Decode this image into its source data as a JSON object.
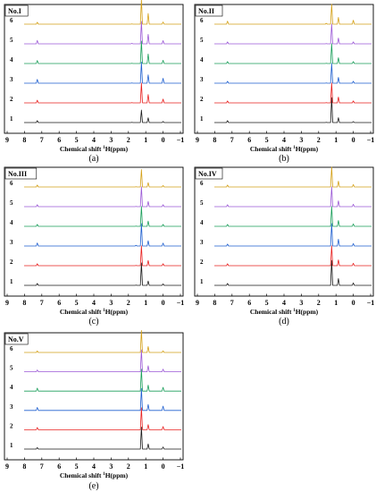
{
  "figure": {
    "xlabel_prefix": "Chemical shift ",
    "xlabel_sup": "1",
    "xlabel_suffix": "H(ppm)",
    "spectrum_labels": [
      "1",
      "2",
      "3",
      "4",
      "5",
      "6"
    ],
    "spectrum_colors": [
      "#1a1a1a",
      "#e8201f",
      "#1f5fcf",
      "#1a9e5a",
      "#9b59d6",
      "#d4a017"
    ]
  },
  "chart_data": [
    {
      "type": "line",
      "panel_title": "No.I",
      "caption": "(a)",
      "x": [
        -1,
        0,
        1,
        2,
        3,
        4,
        5,
        6,
        7,
        8,
        9
      ],
      "xticks": [
        "9",
        "8",
        "7",
        "6",
        "5",
        "4",
        "3",
        "2",
        "1",
        "0",
        "−1"
      ],
      "xlim": [
        9,
        -1
      ],
      "x_reversed": true,
      "peaks": [
        {
          "ppm": 7.26,
          "h": 0.35
        },
        {
          "ppm": 1.8,
          "h": 0.08
        },
        {
          "ppm": 1.25,
          "h": 2.3
        },
        {
          "ppm": 0.86,
          "h": 1.1
        },
        {
          "ppm": 0.0,
          "h": 0.5
        }
      ],
      "series": [
        {
          "name": "1",
          "intensity": [
            0.5,
            0.25,
            0.5,
            0.4,
            0.2
          ]
        },
        {
          "name": "2",
          "intensity": [
            0.7,
            0.3,
            0.8,
            0.7,
            0.7
          ]
        },
        {
          "name": "3",
          "intensity": [
            1.0,
            0.3,
            0.85,
            0.7,
            0.9
          ]
        },
        {
          "name": "4",
          "intensity": [
            0.8,
            0.3,
            0.9,
            0.8,
            0.6
          ]
        },
        {
          "name": "5",
          "intensity": [
            0.9,
            0.5,
            0.9,
            0.8,
            0.6
          ]
        },
        {
          "name": "6",
          "intensity": [
            0.5,
            0.3,
            1.0,
            0.9,
            0.4
          ]
        }
      ]
    },
    {
      "type": "line",
      "panel_title": "No.II",
      "caption": "(b)",
      "x": [
        -1,
        0,
        1,
        2,
        3,
        4,
        5,
        6,
        7,
        8,
        9
      ],
      "xticks": [
        "9",
        "8",
        "7",
        "6",
        "5",
        "4",
        "3",
        "2",
        "1",
        "0",
        "−1"
      ],
      "xlim": [
        9,
        -1
      ],
      "x_reversed": true,
      "peaks": [
        {
          "ppm": 7.26,
          "h": 0.35
        },
        {
          "ppm": 1.56,
          "h": 0.12
        },
        {
          "ppm": 1.25,
          "h": 2.3
        },
        {
          "ppm": 0.86,
          "h": 0.9
        },
        {
          "ppm": 0.0,
          "h": 0.45
        }
      ],
      "series": [
        {
          "name": "1",
          "intensity": [
            0.5,
            0.2,
            1.0,
            0.5,
            0.2
          ]
        },
        {
          "name": "2",
          "intensity": [
            0.5,
            0.2,
            0.8,
            0.6,
            0.4
          ]
        },
        {
          "name": "3",
          "intensity": [
            0.5,
            0.2,
            0.8,
            0.6,
            0.4
          ]
        },
        {
          "name": "4",
          "intensity": [
            0.5,
            0.2,
            0.8,
            0.6,
            0.4
          ]
        },
        {
          "name": "5",
          "intensity": [
            0.5,
            0.2,
            0.8,
            0.6,
            0.4
          ]
        },
        {
          "name": "6",
          "intensity": [
            0.8,
            0.6,
            0.8,
            0.7,
            0.8
          ]
        }
      ]
    },
    {
      "type": "line",
      "panel_title": "No.III",
      "caption": "(c)",
      "x": [
        -1,
        0,
        1,
        2,
        3,
        4,
        5,
        6,
        7,
        8,
        9
      ],
      "xticks": [
        "9",
        "8",
        "7",
        "6",
        "5",
        "4",
        "3",
        "2",
        "1",
        "0",
        "−1"
      ],
      "xlim": [
        9,
        -1
      ],
      "x_reversed": true,
      "peaks": [
        {
          "ppm": 7.26,
          "h": 0.35
        },
        {
          "ppm": 1.56,
          "h": 0.12
        },
        {
          "ppm": 1.25,
          "h": 2.3
        },
        {
          "ppm": 0.86,
          "h": 0.8
        },
        {
          "ppm": 0.0,
          "h": 0.45
        }
      ],
      "series": [
        {
          "name": "1",
          "intensity": [
            0.5,
            0.2,
            0.9,
            0.5,
            0.3
          ]
        },
        {
          "name": "2",
          "intensity": [
            0.5,
            0.2,
            0.8,
            0.6,
            0.4
          ]
        },
        {
          "name": "3",
          "intensity": [
            0.8,
            0.5,
            0.9,
            0.6,
            0.6
          ]
        },
        {
          "name": "4",
          "intensity": [
            0.5,
            0.2,
            0.8,
            0.6,
            0.4
          ]
        },
        {
          "name": "5",
          "intensity": [
            0.5,
            0.2,
            0.8,
            0.6,
            0.4
          ]
        },
        {
          "name": "6",
          "intensity": [
            0.5,
            0.2,
            0.7,
            0.5,
            0.3
          ]
        }
      ]
    },
    {
      "type": "line",
      "panel_title": "No.IV",
      "caption": "(d)",
      "x": [
        -1,
        0,
        1,
        2,
        3,
        4,
        5,
        6,
        7,
        8,
        9
      ],
      "xticks": [
        "9",
        "8",
        "7",
        "6",
        "5",
        "4",
        "3",
        "2",
        "1",
        "0",
        "−1"
      ],
      "xlim": [
        9,
        -1
      ],
      "x_reversed": true,
      "peaks": [
        {
          "ppm": 7.26,
          "h": 0.35
        },
        {
          "ppm": 1.25,
          "h": 2.3
        },
        {
          "ppm": 0.86,
          "h": 0.9
        },
        {
          "ppm": 0.0,
          "h": 0.45
        }
      ],
      "series": [
        {
          "name": "1",
          "intensity": [
            0.5,
            1.0,
            0.7,
            0.5
          ]
        },
        {
          "name": "2",
          "intensity": [
            0.5,
            0.8,
            0.6,
            0.5
          ]
        },
        {
          "name": "3",
          "intensity": [
            0.5,
            0.9,
            0.7,
            0.5
          ]
        },
        {
          "name": "4",
          "intensity": [
            0.5,
            0.8,
            0.6,
            0.5
          ]
        },
        {
          "name": "5",
          "intensity": [
            0.5,
            0.8,
            0.6,
            0.5
          ]
        },
        {
          "name": "6",
          "intensity": [
            0.5,
            0.8,
            0.6,
            0.5
          ]
        }
      ]
    },
    {
      "type": "line",
      "panel_title": "No.V",
      "caption": "(e)",
      "x": [
        -1,
        0,
        1,
        2,
        3,
        4,
        5,
        6,
        7,
        8,
        9
      ],
      "xticks": [
        "9",
        "8",
        "7",
        "6",
        "5",
        "4",
        "3",
        "2",
        "1",
        "0",
        "−1"
      ],
      "xlim": [
        9,
        -1
      ],
      "x_reversed": true,
      "peaks": [
        {
          "ppm": 7.26,
          "h": 0.35
        },
        {
          "ppm": 1.25,
          "h": 2.3
        },
        {
          "ppm": 0.86,
          "h": 0.8
        },
        {
          "ppm": 0.0,
          "h": 0.5
        }
      ],
      "series": [
        {
          "name": "1",
          "intensity": [
            0.4,
            0.9,
            0.6,
            0.4
          ]
        },
        {
          "name": "2",
          "intensity": [
            0.6,
            0.9,
            0.6,
            0.6
          ]
        },
        {
          "name": "3",
          "intensity": [
            0.8,
            0.9,
            0.7,
            0.8
          ]
        },
        {
          "name": "4",
          "intensity": [
            0.8,
            0.9,
            0.7,
            0.7
          ]
        },
        {
          "name": "5",
          "intensity": [
            0.5,
            0.9,
            0.7,
            0.5
          ]
        },
        {
          "name": "6",
          "intensity": [
            0.4,
            0.9,
            0.7,
            0.3
          ]
        }
      ]
    }
  ]
}
